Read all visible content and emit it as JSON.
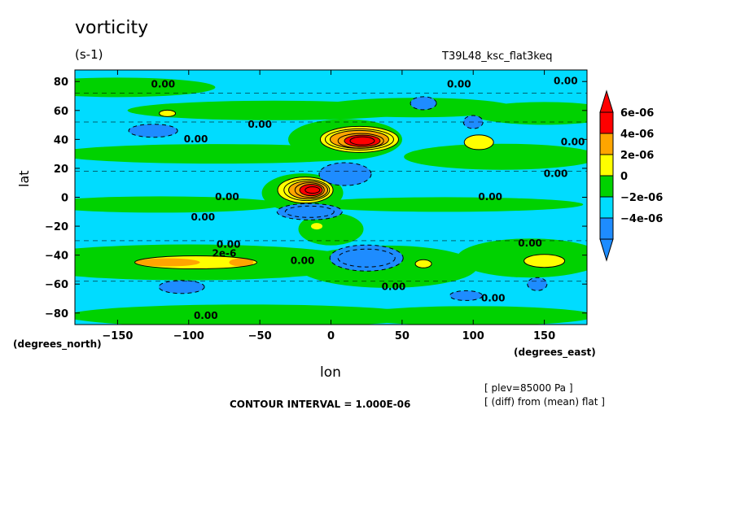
{
  "header": {
    "title": "vorticity",
    "units": "(s-1)",
    "run_id": "T39L48_ksc_flat3keq"
  },
  "footer": {
    "contour_interval": "CONTOUR INTERVAL = 1.000E-06",
    "note_level": "[ plev=85000 Pa ]",
    "note_diff": "[ (diff) from (mean) flat ]"
  },
  "colors": {
    "lvl_m4": "#1e8cff",
    "lvl_m2": "#00dcff",
    "lvl_0": "#00d200",
    "lvl_2": "#ffff00",
    "lvl_4": "#ffa500",
    "lvl_6": "#ff0000"
  },
  "chart_data": {
    "type": "heatmap",
    "title": "vorticity",
    "subtitle": "(s-1)",
    "xlabel": "lon",
    "ylabel": "lat",
    "x_units": "(degrees_east)",
    "y_units": "(degrees_north)",
    "xlim": [
      -180,
      180
    ],
    "ylim": [
      -88,
      88
    ],
    "x_ticks": [
      -150,
      -100,
      -50,
      0,
      50,
      100,
      150
    ],
    "y_ticks": [
      80,
      60,
      40,
      20,
      0,
      -20,
      -40,
      -60,
      -80
    ],
    "colorbar": {
      "levels": [
        "6e-06",
        "4e-06",
        "2e-06",
        "0",
        "-2e-06",
        "-4e-06"
      ],
      "colors": [
        "#ff0000",
        "#ffa500",
        "#ffff00",
        "#00d200",
        "#00dcff",
        "#1e8cff"
      ],
      "extend": "both"
    },
    "contour_labels": [
      {
        "text": "0.00",
        "lon": -118,
        "lat": 78
      },
      {
        "text": "0.00",
        "lon": 90,
        "lat": 78
      },
      {
        "text": "0.00",
        "lon": 165,
        "lat": 80
      },
      {
        "text": "0.00",
        "lon": -50,
        "lat": 50
      },
      {
        "text": "0.00",
        "lon": -95,
        "lat": 40
      },
      {
        "text": "0.00",
        "lon": 170,
        "lat": 38
      },
      {
        "text": "0.00",
        "lon": 158,
        "lat": 16
      },
      {
        "text": "0.00",
        "lon": 112,
        "lat": 0
      },
      {
        "text": "0.00",
        "lon": -73,
        "lat": 0
      },
      {
        "text": "0.00",
        "lon": -90,
        "lat": -14
      },
      {
        "text": "0.00",
        "lon": -72,
        "lat": -33
      },
      {
        "text": "2e-6",
        "lon": -75,
        "lat": -39
      },
      {
        "text": "0.00",
        "lon": -20,
        "lat": -44
      },
      {
        "text": "0.00",
        "lon": 140,
        "lat": -32
      },
      {
        "text": "0.00",
        "lon": 44,
        "lat": -62
      },
      {
        "text": "0.00",
        "lon": 114,
        "lat": -70
      },
      {
        "text": "0.00",
        "lon": -88,
        "lat": -82
      }
    ],
    "features": [
      {
        "kind": "max",
        "value": 6e-06,
        "lon": 20,
        "lat": 40
      },
      {
        "kind": "max",
        "value": 6e-06,
        "lon": -15,
        "lat": 5
      },
      {
        "kind": "min",
        "value": -4e-06,
        "lon": -10,
        "lat": -10
      },
      {
        "kind": "min",
        "value": -4e-06,
        "lon": 25,
        "lat": -42
      },
      {
        "kind": "min",
        "value": -4e-06,
        "lon": 15,
        "lat": 15
      }
    ]
  }
}
